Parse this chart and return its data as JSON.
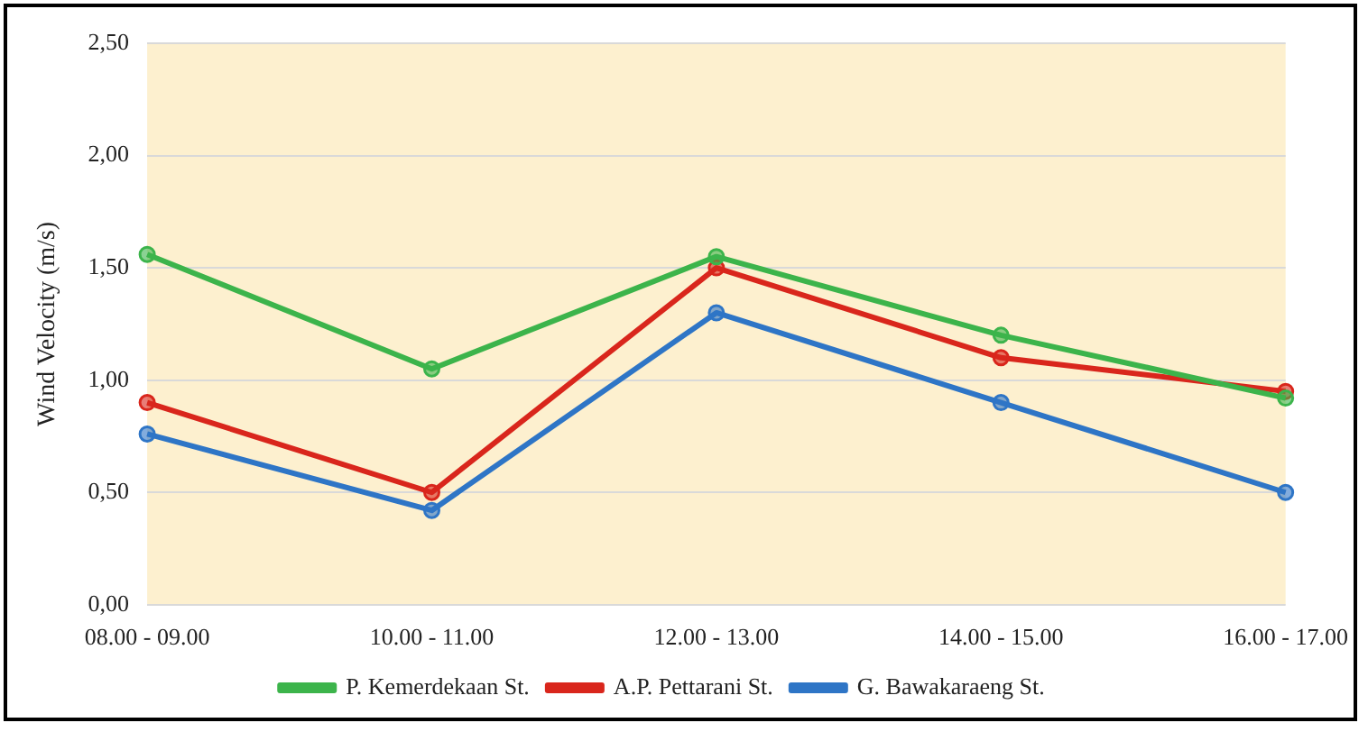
{
  "chart_data": {
    "type": "line",
    "ylabel": "Wind Velocity (m/s)",
    "categories": [
      "08.00 - 09.00",
      "10.00 - 11.00",
      "12.00 - 13.00",
      "14.00 - 15.00",
      "16.00 - 17.00"
    ],
    "series": [
      {
        "name": "G. Bawakaraeng St.",
        "color": "#2e75c6",
        "values": [
          0.76,
          0.42,
          1.3,
          0.9,
          0.5
        ]
      },
      {
        "name": "A.P. Pettarani St.",
        "color": "#d9261c",
        "values": [
          0.9,
          0.5,
          1.5,
          1.1,
          0.95
        ]
      },
      {
        "name": "P. Kemerdekaan St.",
        "color": "#3cb44b",
        "values": [
          1.56,
          1.05,
          1.55,
          1.2,
          0.92
        ]
      }
    ],
    "ylim": [
      0,
      2.5
    ],
    "yticks": [
      {
        "value": 0,
        "label": "0,00"
      },
      {
        "value": 0.5,
        "label": "0,50"
      },
      {
        "value": 1,
        "label": "1,00"
      },
      {
        "value": 1.5,
        "label": "1,50"
      },
      {
        "value": 2,
        "label": "2,00"
      },
      {
        "value": 2.5,
        "label": "2,50"
      }
    ],
    "grid": "y",
    "legend": "bottom",
    "marker": "circle",
    "line_style": "solid"
  }
}
